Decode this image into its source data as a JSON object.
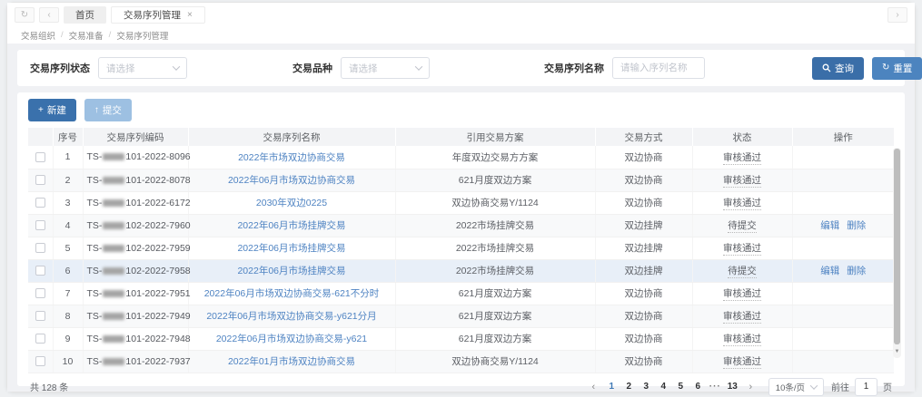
{
  "window": {
    "nav": {
      "refresh_icon": "↻",
      "back_icon": "‹",
      "forward_icon": "›"
    },
    "tabs": [
      {
        "label": "首页"
      },
      {
        "label": "交易序列管理",
        "close_icon": "×"
      }
    ]
  },
  "breadcrumb": {
    "items": [
      "交易组织",
      "交易准备",
      "交易序列管理"
    ],
    "separator": "/"
  },
  "filters": {
    "status_label": "交易序列状态",
    "status_placeholder": "请选择",
    "variety_label": "交易品种",
    "variety_placeholder": "请选择",
    "name_label": "交易序列名称",
    "name_placeholder": "请输入序列名称",
    "search_label": "查询",
    "reset_label": "重置",
    "reset_icon": "↻"
  },
  "toolbar": {
    "new_label": "新建",
    "new_icon": "+",
    "submit_label": "提交",
    "submit_icon": "↑"
  },
  "table": {
    "columns": [
      "序号",
      "交易序列编码",
      "交易序列名称",
      "引用交易方案",
      "交易方式",
      "状态",
      "操作"
    ],
    "action_edit": "编辑",
    "action_delete": "删除",
    "rows": [
      {
        "index": "1",
        "code_prefix": "TS-",
        "code_suffix": "101-2022-8096",
        "name": "2022年市场双边协商交易",
        "plan": "年度双边交易方方案",
        "method": "双边协商",
        "status": "审核通过",
        "actions": []
      },
      {
        "index": "2",
        "code_prefix": "TS-",
        "code_suffix": "101-2022-8078",
        "name": "2022年06月市场双边协商交易",
        "plan": "621月度双边方案",
        "method": "双边协商",
        "status": "审核通过",
        "actions": []
      },
      {
        "index": "3",
        "code_prefix": "TS-",
        "code_suffix": "101-2022-6172",
        "name": "2030年双边0225",
        "plan": "双边协商交易Y/1124",
        "method": "双边协商",
        "status": "审核通过",
        "actions": []
      },
      {
        "index": "4",
        "code_prefix": "TS-",
        "code_suffix": "102-2022-7960",
        "name": "2022年06月市场挂牌交易",
        "plan": "2022市场挂牌交易",
        "method": "双边挂牌",
        "status": "待提交",
        "actions": [
          "edit",
          "delete"
        ]
      },
      {
        "index": "5",
        "code_prefix": "TS-",
        "code_suffix": "102-2022-7959",
        "name": "2022年06月市场挂牌交易",
        "plan": "2022市场挂牌交易",
        "method": "双边挂牌",
        "status": "审核通过",
        "actions": []
      },
      {
        "index": "6",
        "code_prefix": "TS-",
        "code_suffix": "102-2022-7958",
        "name": "2022年06月市场挂牌交易",
        "plan": "2022市场挂牌交易",
        "method": "双边挂牌",
        "status": "待提交",
        "actions": [
          "edit",
          "delete"
        ],
        "highlighted": true
      },
      {
        "index": "7",
        "code_prefix": "TS-",
        "code_suffix": "101-2022-7951",
        "name": "2022年06月市场双边协商交易-621不分时",
        "plan": "621月度双边方案",
        "method": "双边协商",
        "status": "审核通过",
        "actions": []
      },
      {
        "index": "8",
        "code_prefix": "TS-",
        "code_suffix": "101-2022-7949",
        "name": "2022年06月市场双边协商交易-y621分月",
        "plan": "621月度双边方案",
        "method": "双边协商",
        "status": "审核通过",
        "actions": []
      },
      {
        "index": "9",
        "code_prefix": "TS-",
        "code_suffix": "101-2022-7948",
        "name": "2022年06月市场双边协商交易-y621",
        "plan": "621月度双边方案",
        "method": "双边协商",
        "status": "审核通过",
        "actions": []
      },
      {
        "index": "10",
        "code_prefix": "TS-",
        "code_suffix": "101-2022-7937",
        "name": "2022年01月市场双边协商交易",
        "plan": "双边协商交易Y/1124",
        "method": "双边协商",
        "status": "审核通过",
        "actions": []
      }
    ]
  },
  "footer": {
    "total": "共 128 条",
    "prev_icon": "‹",
    "next_icon": "›",
    "pages": [
      "1",
      "2",
      "3",
      "4",
      "5",
      "6",
      "···",
      "13"
    ],
    "current_page": "1",
    "page_size": "10条/页",
    "goto_label": "前往",
    "goto_value": "1",
    "goto_suffix": "页"
  },
  "colors": {
    "primary": "#3e78b5",
    "link": "#4e83c2",
    "disabled_button": "#9dc0e2"
  }
}
